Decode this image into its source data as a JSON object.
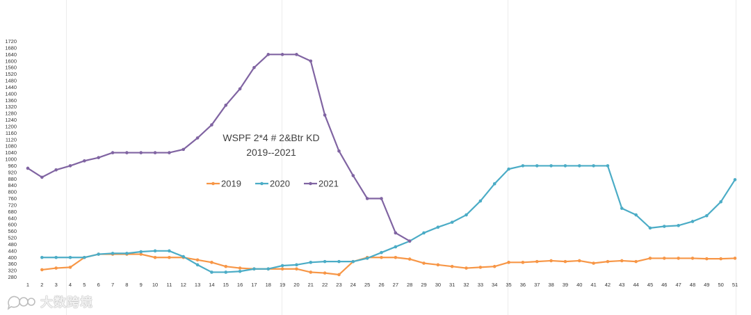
{
  "chart_data": {
    "type": "line",
    "title": "WSPF 2*4 # 2&Btr KD",
    "subtitle": "2019--2021",
    "xlabel": "",
    "ylabel": "",
    "x": [
      1,
      2,
      3,
      4,
      5,
      6,
      7,
      8,
      9,
      10,
      11,
      12,
      13,
      14,
      15,
      16,
      17,
      18,
      19,
      20,
      21,
      22,
      23,
      24,
      25,
      26,
      27,
      28,
      29,
      30,
      31,
      32,
      33,
      34,
      35,
      36,
      37,
      38,
      39,
      40,
      41,
      42,
      43,
      44,
      45,
      46,
      47,
      48,
      49,
      50,
      51
    ],
    "ylim": [
      280,
      1720
    ],
    "ystep": 40,
    "grid": false,
    "legend_position": "middle",
    "series": [
      {
        "name": "2019",
        "color": "#F79646",
        "values": [
          null,
          325,
          335,
          340,
          400,
          420,
          420,
          420,
          420,
          400,
          400,
          400,
          385,
          370,
          345,
          335,
          330,
          330,
          330,
          330,
          310,
          305,
          295,
          375,
          400,
          400,
          400,
          390,
          365,
          355,
          345,
          335,
          340,
          345,
          370,
          370,
          375,
          380,
          375,
          380,
          365,
          375,
          380,
          375,
          395,
          395,
          395,
          395,
          392,
          392,
          395
        ]
      },
      {
        "name": "2020",
        "color": "#4BACC6",
        "values": [
          null,
          400,
          400,
          400,
          400,
          420,
          425,
          425,
          435,
          440,
          440,
          405,
          355,
          310,
          310,
          315,
          330,
          330,
          350,
          355,
          370,
          375,
          375,
          375,
          395,
          430,
          465,
          500,
          550,
          585,
          615,
          660,
          745,
          850,
          940,
          960,
          960,
          960,
          960,
          960,
          960,
          960,
          700,
          660,
          580,
          590,
          595,
          620,
          655,
          740,
          875
        ]
      },
      {
        "name": "2021",
        "color": "#8064A2",
        "values": [
          945,
          890,
          935,
          960,
          990,
          1010,
          1040,
          1040,
          1040,
          1040,
          1040,
          1060,
          1130,
          1210,
          1330,
          1430,
          1560,
          1640,
          1640,
          1640,
          1600,
          1270,
          1050,
          900,
          760,
          760,
          550,
          500,
          null,
          null,
          null,
          null,
          null,
          null,
          null,
          null,
          null,
          null,
          null,
          null,
          null,
          null,
          null,
          null,
          null,
          null,
          null,
          null,
          null,
          null,
          null
        ]
      }
    ]
  },
  "watermark": {
    "icon": "chat-bubbles-icon",
    "text": "大数跨境"
  }
}
